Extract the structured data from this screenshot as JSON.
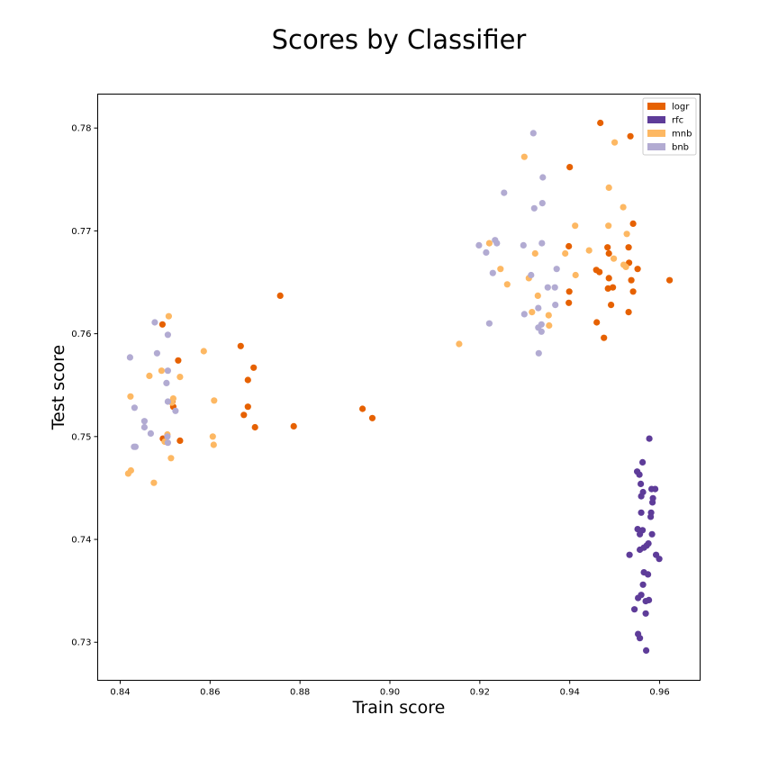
{
  "chart_data": {
    "type": "scatter",
    "title": "Scores by Classifier",
    "xlabel": "Train score",
    "ylabel": "Test score",
    "xlim": [
      0.835,
      0.969
    ],
    "ylim": [
      0.7263,
      0.7833
    ],
    "xticks": [
      0.84,
      0.86,
      0.88,
      0.9,
      0.92,
      0.94,
      0.96
    ],
    "yticks": [
      0.73,
      0.74,
      0.75,
      0.76,
      0.77,
      0.78
    ],
    "legend_position": "top-right",
    "grid": false,
    "series": [
      {
        "name": "logr",
        "color": "#e66101",
        "points": [
          [
            0.8494,
            0.7609
          ],
          [
            0.8529,
            0.7574
          ],
          [
            0.8516,
            0.7534
          ],
          [
            0.8518,
            0.7529
          ],
          [
            0.8495,
            0.7498
          ],
          [
            0.8533,
            0.7496
          ],
          [
            0.8668,
            0.7588
          ],
          [
            0.8697,
            0.7567
          ],
          [
            0.8684,
            0.7555
          ],
          [
            0.8684,
            0.7529
          ],
          [
            0.8675,
            0.7521
          ],
          [
            0.87,
            0.7509
          ],
          [
            0.8756,
            0.7637
          ],
          [
            0.8786,
            0.751
          ],
          [
            0.8939,
            0.7527
          ],
          [
            0.8961,
            0.7518
          ],
          [
            0.9468,
            0.7805
          ],
          [
            0.9535,
            0.7792
          ],
          [
            0.94,
            0.7762
          ],
          [
            0.9541,
            0.7707
          ],
          [
            0.9398,
            0.7685
          ],
          [
            0.9484,
            0.7684
          ],
          [
            0.9531,
            0.7684
          ],
          [
            0.9487,
            0.7678
          ],
          [
            0.9532,
            0.7669
          ],
          [
            0.9459,
            0.7662
          ],
          [
            0.9466,
            0.766
          ],
          [
            0.9551,
            0.7663
          ],
          [
            0.9487,
            0.7654
          ],
          [
            0.9537,
            0.7652
          ],
          [
            0.9622,
            0.7652
          ],
          [
            0.9496,
            0.7645
          ],
          [
            0.9485,
            0.7644
          ],
          [
            0.9541,
            0.7641
          ],
          [
            0.9399,
            0.7641
          ],
          [
            0.9398,
            0.763
          ],
          [
            0.9492,
            0.7628
          ],
          [
            0.9531,
            0.7621
          ],
          [
            0.946,
            0.7611
          ],
          [
            0.9476,
            0.7596
          ]
        ]
      },
      {
        "name": "rfc",
        "color": "#5e3c99",
        "points": [
          [
            0.9577,
            0.7498
          ],
          [
            0.9562,
            0.7475
          ],
          [
            0.955,
            0.7466
          ],
          [
            0.9555,
            0.7463
          ],
          [
            0.9558,
            0.7454
          ],
          [
            0.9582,
            0.7449
          ],
          [
            0.959,
            0.7449
          ],
          [
            0.9563,
            0.7446
          ],
          [
            0.9585,
            0.744
          ],
          [
            0.9559,
            0.7442
          ],
          [
            0.9584,
            0.7436
          ],
          [
            0.9581,
            0.7426
          ],
          [
            0.9559,
            0.7426
          ],
          [
            0.958,
            0.7422
          ],
          [
            0.9551,
            0.741
          ],
          [
            0.9562,
            0.7409
          ],
          [
            0.9556,
            0.7405
          ],
          [
            0.9583,
            0.7405
          ],
          [
            0.9575,
            0.7396
          ],
          [
            0.9571,
            0.7394
          ],
          [
            0.9565,
            0.7392
          ],
          [
            0.9556,
            0.739
          ],
          [
            0.9533,
            0.7385
          ],
          [
            0.9592,
            0.7385
          ],
          [
            0.9599,
            0.7381
          ],
          [
            0.9565,
            0.7368
          ],
          [
            0.9574,
            0.7366
          ],
          [
            0.9563,
            0.7356
          ],
          [
            0.9559,
            0.7346
          ],
          [
            0.9552,
            0.7343
          ],
          [
            0.9576,
            0.7341
          ],
          [
            0.9569,
            0.734
          ],
          [
            0.9544,
            0.7332
          ],
          [
            0.9569,
            0.7328
          ],
          [
            0.9552,
            0.7308
          ],
          [
            0.9556,
            0.7304
          ],
          [
            0.957,
            0.7292
          ]
        ]
      },
      {
        "name": "mnb",
        "color": "#fdb863",
        "points": [
          [
            0.8508,
            0.7617
          ],
          [
            0.8586,
            0.7583
          ],
          [
            0.8492,
            0.7564
          ],
          [
            0.8465,
            0.7559
          ],
          [
            0.8533,
            0.7558
          ],
          [
            0.8609,
            0.7535
          ],
          [
            0.8423,
            0.7539
          ],
          [
            0.8518,
            0.7537
          ],
          [
            0.8515,
            0.7533
          ],
          [
            0.8505,
            0.7502
          ],
          [
            0.8606,
            0.75
          ],
          [
            0.8499,
            0.7495
          ],
          [
            0.8608,
            0.7492
          ],
          [
            0.8513,
            0.7479
          ],
          [
            0.8424,
            0.7467
          ],
          [
            0.8418,
            0.7464
          ],
          [
            0.8475,
            0.7455
          ],
          [
            0.9154,
            0.759
          ],
          [
            0.9299,
            0.7772
          ],
          [
            0.95,
            0.7786
          ],
          [
            0.9487,
            0.7742
          ],
          [
            0.9519,
            0.7723
          ],
          [
            0.9412,
            0.7705
          ],
          [
            0.9486,
            0.7705
          ],
          [
            0.9527,
            0.7697
          ],
          [
            0.9221,
            0.7688
          ],
          [
            0.9443,
            0.7681
          ],
          [
            0.9323,
            0.7678
          ],
          [
            0.939,
            0.7678
          ],
          [
            0.9498,
            0.7673
          ],
          [
            0.952,
            0.7667
          ],
          [
            0.9525,
            0.7665
          ],
          [
            0.9246,
            0.7663
          ],
          [
            0.9413,
            0.7657
          ],
          [
            0.9309,
            0.7654
          ],
          [
            0.9261,
            0.7648
          ],
          [
            0.9329,
            0.7637
          ],
          [
            0.9316,
            0.7621
          ],
          [
            0.9353,
            0.7618
          ],
          [
            0.9354,
            0.7608
          ]
        ]
      },
      {
        "name": "bnb",
        "color": "#b2abd2",
        "points": [
          [
            0.8477,
            0.7611
          ],
          [
            0.8506,
            0.7599
          ],
          [
            0.8482,
            0.7581
          ],
          [
            0.8422,
            0.7577
          ],
          [
            0.8506,
            0.7564
          ],
          [
            0.8503,
            0.7552
          ],
          [
            0.8506,
            0.7534
          ],
          [
            0.8432,
            0.7528
          ],
          [
            0.8523,
            0.7525
          ],
          [
            0.8454,
            0.7515
          ],
          [
            0.8454,
            0.7509
          ],
          [
            0.8468,
            0.7503
          ],
          [
            0.8505,
            0.75
          ],
          [
            0.8506,
            0.7494
          ],
          [
            0.8431,
            0.749
          ],
          [
            0.8434,
            0.749
          ],
          [
            0.9319,
            0.7795
          ],
          [
            0.934,
            0.7752
          ],
          [
            0.9254,
            0.7737
          ],
          [
            0.9339,
            0.7727
          ],
          [
            0.9321,
            0.7722
          ],
          [
            0.9234,
            0.7691
          ],
          [
            0.9238,
            0.7688
          ],
          [
            0.9198,
            0.7686
          ],
          [
            0.9297,
            0.7686
          ],
          [
            0.9338,
            0.7688
          ],
          [
            0.9214,
            0.7679
          ],
          [
            0.9371,
            0.7663
          ],
          [
            0.9229,
            0.7659
          ],
          [
            0.9314,
            0.7657
          ],
          [
            0.9351,
            0.7645
          ],
          [
            0.9367,
            0.7645
          ],
          [
            0.9368,
            0.7628
          ],
          [
            0.933,
            0.7625
          ],
          [
            0.9299,
            0.7619
          ],
          [
            0.9221,
            0.761
          ],
          [
            0.9337,
            0.7609
          ],
          [
            0.933,
            0.7606
          ],
          [
            0.9337,
            0.7602
          ],
          [
            0.9331,
            0.7581
          ]
        ]
      }
    ]
  }
}
